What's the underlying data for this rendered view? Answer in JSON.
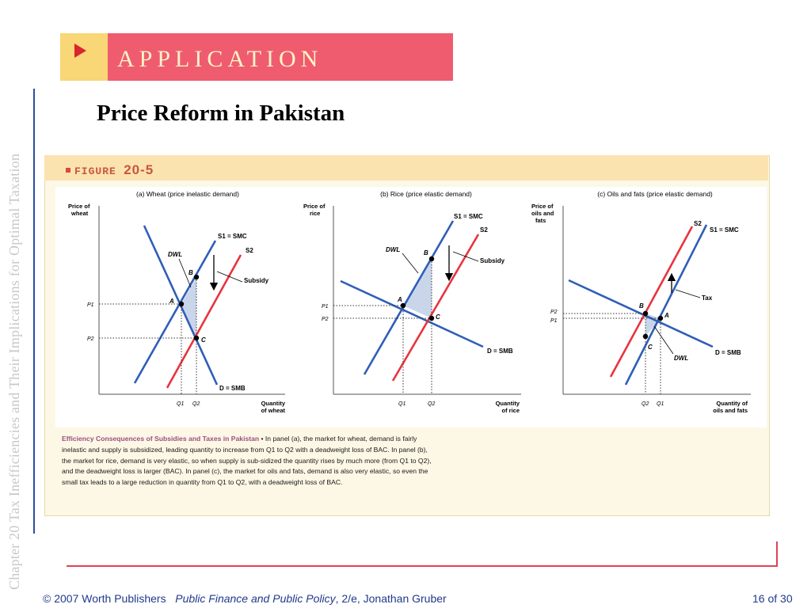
{
  "sidebar": {
    "vertical_text": "Chapter 20  Tax Inefficiencies and Their Implications for Optimal Taxation"
  },
  "banner": {
    "text": "APPLICATION",
    "arrow_icon": "play-arrow-icon"
  },
  "title": "Price Reform in Pakistan",
  "figure": {
    "label_word": "FIGURE",
    "label_number": "20-5",
    "caption_title": "Efficiency Consequences of Subsidies and Taxes in Pakistan",
    "caption_body": " • In panel (a), the market for wheat, demand is fairly inelastic and supply is subsidized, leading quantity to increase from Q1 to Q2 with a deadweight loss of BAC. In panel (b), the market for rice, demand is very elastic, so when supply is sub-sidized the quantity rises by much more (from Q1 to Q2), and the deadweight loss is larger (BAC). In panel (c), the market for oils and fats, demand is also very elastic, so even the small tax leads to a large reduction in quantity from Q1 to Q2, with a deadweight loss of BAC."
  },
  "colors": {
    "supply_smc": "#2f5eb8",
    "supply_shifted": "#e8343f",
    "demand": "#2f5eb8",
    "dwl_fill": "#c9d6ea",
    "banner_pink": "#ef5c6f",
    "banner_yellow": "#f9d676"
  },
  "chart_data": [
    {
      "type": "line",
      "title": "(a) Wheat (price inelastic demand)",
      "ylabel": "Price of\nwheat",
      "xlabel": "Quantity\nof wheat",
      "series": [
        {
          "name": "S1 = SMC"
        },
        {
          "name": "S2"
        },
        {
          "name": "D = SMB"
        }
      ],
      "points": [
        "A",
        "B",
        "C"
      ],
      "annotations": [
        "DWL",
        "Subsidy"
      ],
      "y_ticks": [
        "P1",
        "P2"
      ],
      "x_ticks": [
        "Q1",
        "Q2"
      ]
    },
    {
      "type": "line",
      "title": "(b) Rice (price elastic demand)",
      "ylabel": "Price of\nrice",
      "xlabel": "Quantity\nof rice",
      "series": [
        {
          "name": "S1 = SMC"
        },
        {
          "name": "S2"
        },
        {
          "name": "D = SMB"
        }
      ],
      "points": [
        "A",
        "B",
        "C"
      ],
      "annotations": [
        "DWL",
        "Subsidy"
      ],
      "y_ticks": [
        "P1",
        "P2"
      ],
      "x_ticks": [
        "Q1",
        "Q2"
      ]
    },
    {
      "type": "line",
      "title": "(c) Oils and fats (price elastic demand)",
      "ylabel": "Price of\noils and\nfats",
      "xlabel": "Quantity of\noils and fats",
      "series": [
        {
          "name": "S1 = SMC"
        },
        {
          "name": "S2"
        },
        {
          "name": "D = SMB"
        }
      ],
      "points": [
        "A",
        "B",
        "C"
      ],
      "annotations": [
        "Tax",
        "DWL"
      ],
      "y_ticks": [
        "P2",
        "P1"
      ],
      "x_ticks": [
        "Q2",
        "Q1"
      ]
    }
  ],
  "footer": {
    "copyright": "© 2007 Worth Publishers",
    "book_title": "Public Finance and Public Policy",
    "edition_author": ", 2/e, Jonathan Gruber",
    "page": "16 of 30"
  }
}
